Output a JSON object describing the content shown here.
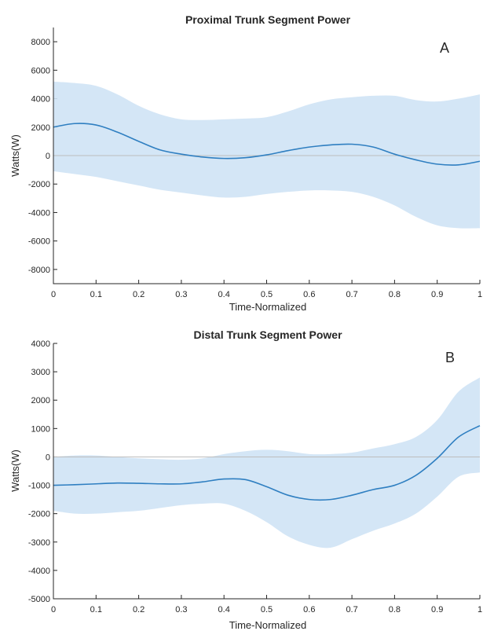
{
  "chart_data": [
    {
      "type": "area",
      "panel": "A",
      "title": "Proximal Trunk Segment Power",
      "xlabel": "Time-Normalized",
      "ylabel": "Watts(W)",
      "xlim": [
        0,
        1
      ],
      "ylim": [
        -9000,
        9000
      ],
      "xticks": [
        "0",
        "0.1",
        "0.2",
        "0.3",
        "0.4",
        "0.5",
        "0.6",
        "0.7",
        "0.8",
        "0.9",
        "1"
      ],
      "yticks": [
        "-8000",
        "-6000",
        "-4000",
        "-2000",
        "0",
        "2000",
        "4000",
        "6000",
        "8000"
      ],
      "x": [
        0,
        0.05,
        0.1,
        0.15,
        0.2,
        0.25,
        0.3,
        0.35,
        0.4,
        0.45,
        0.5,
        0.55,
        0.6,
        0.65,
        0.7,
        0.75,
        0.8,
        0.85,
        0.9,
        0.95,
        1.0
      ],
      "mean": [
        2000,
        2250,
        2150,
        1650,
        1000,
        400,
        100,
        -100,
        -200,
        -150,
        50,
        350,
        600,
        750,
        800,
        600,
        100,
        -300,
        -600,
        -650,
        -400
      ],
      "upper": [
        5200,
        5100,
        4900,
        4300,
        3500,
        2900,
        2550,
        2500,
        2550,
        2600,
        2700,
        3100,
        3600,
        3950,
        4100,
        4200,
        4200,
        3900,
        3800,
        4000,
        4300
      ],
      "lower": [
        -1100,
        -1300,
        -1500,
        -1800,
        -2100,
        -2400,
        -2600,
        -2800,
        -2950,
        -2900,
        -2700,
        -2550,
        -2450,
        -2450,
        -2550,
        -2900,
        -3500,
        -4300,
        -4900,
        -5100,
        -5100
      ]
    },
    {
      "type": "area",
      "panel": "B",
      "title": "Distal Trunk Segment Power",
      "xlabel": "Time-Normalized",
      "ylabel": "Watts(W)",
      "xlim": [
        0,
        1
      ],
      "ylim": [
        -5000,
        4000
      ],
      "xticks": [
        "0",
        "0.1",
        "0.2",
        "0.3",
        "0.4",
        "0.5",
        "0.6",
        "0.7",
        "0.8",
        "0.9",
        "1"
      ],
      "yticks": [
        "-5000",
        "-4000",
        "-3000",
        "-2000",
        "-1000",
        "0",
        "1000",
        "2000",
        "3000",
        "4000"
      ],
      "x": [
        0,
        0.05,
        0.1,
        0.15,
        0.2,
        0.25,
        0.3,
        0.35,
        0.4,
        0.45,
        0.5,
        0.55,
        0.6,
        0.65,
        0.7,
        0.75,
        0.8,
        0.85,
        0.9,
        0.95,
        1.0
      ],
      "mean": [
        -1000,
        -980,
        -950,
        -920,
        -930,
        -950,
        -950,
        -880,
        -780,
        -800,
        -1050,
        -1350,
        -1500,
        -1500,
        -1350,
        -1150,
        -1000,
        -650,
        -50,
        700,
        1100
      ],
      "upper": [
        0,
        50,
        50,
        0,
        -50,
        -80,
        -100,
        -50,
        100,
        200,
        250,
        200,
        100,
        100,
        150,
        300,
        450,
        700,
        1300,
        2300,
        2800
      ],
      "lower": [
        -1900,
        -2000,
        -2000,
        -1950,
        -1900,
        -1800,
        -1700,
        -1650,
        -1650,
        -1900,
        -2300,
        -2800,
        -3100,
        -3200,
        -2900,
        -2600,
        -2350,
        -2000,
        -1400,
        -700,
        -550
      ]
    }
  ]
}
